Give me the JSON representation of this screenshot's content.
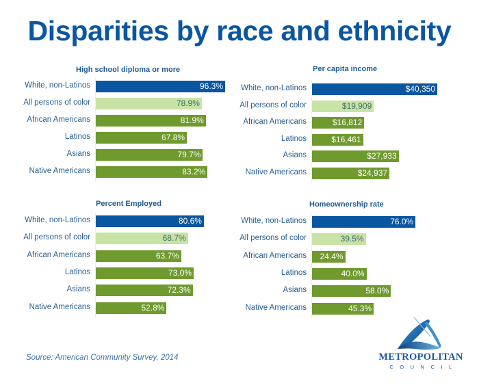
{
  "title": "Disparities by race and ethnicity",
  "source": "Source:  American Community Survey, 2014",
  "logo": {
    "name": "METROPOLITAN",
    "sub": "COUNCIL"
  },
  "colors": {
    "white": "#0a56a0",
    "all_poc": "#c9e2a6",
    "group": "#6f9a2e",
    "title": "#0a56a0",
    "label": "#2a5f92"
  },
  "chart_data": [
    {
      "type": "bar",
      "orientation": "horizontal",
      "title": "High school diploma or more",
      "categories": [
        "White, non-Latinos",
        "All persons of color",
        "African Americans",
        "Latinos",
        "Asians",
        "Native Americans"
      ],
      "values": [
        96.3,
        78.9,
        81.9,
        67.8,
        79.7,
        83.2
      ],
      "labels": [
        "96.3%",
        "78.9%",
        "81.9%",
        "67.8%",
        "79.7%",
        "83.2%"
      ],
      "unit": "%",
      "xlim": [
        0,
        100
      ]
    },
    {
      "type": "bar",
      "orientation": "horizontal",
      "title": "Per capita income",
      "categories": [
        "White, non-Latinos",
        "All persons of color",
        "African Americans",
        "Latinos",
        "Asians",
        "Native Americans"
      ],
      "values": [
        40350,
        19909,
        16812,
        16461,
        27933,
        24937
      ],
      "labels": [
        "$40,350",
        "$19,909",
        "$16,812",
        "$16,461",
        "$27,933",
        "$24,937"
      ],
      "unit": "$",
      "xlim": [
        0,
        40350
      ]
    },
    {
      "type": "bar",
      "orientation": "horizontal",
      "title": "Percent Employed",
      "categories": [
        "White, non-Latinos",
        "All persons of color",
        "African Americans",
        "Latinos",
        "Asians",
        "Native Americans"
      ],
      "values": [
        80.6,
        68.7,
        63.7,
        73.0,
        72.3,
        52.8
      ],
      "labels": [
        "80.6%",
        "68.7%",
        "63.7%",
        "73.0%",
        "72.3%",
        "52.8%"
      ],
      "unit": "%",
      "xlim": [
        0,
        100
      ]
    },
    {
      "type": "bar",
      "orientation": "horizontal",
      "title": "Homeownership rate",
      "categories": [
        "White, non-Latinos",
        "All persons of color",
        "African Americans",
        "Latinos",
        "Asians",
        "Native Americans"
      ],
      "values": [
        76.0,
        39.5,
        24.4,
        40.0,
        58.0,
        45.3
      ],
      "labels": [
        "76.0%",
        "39.5%",
        "24.4%",
        "40.0%",
        "58.0%",
        "45.3%"
      ],
      "unit": "%",
      "xlim": [
        0,
        100
      ]
    }
  ]
}
